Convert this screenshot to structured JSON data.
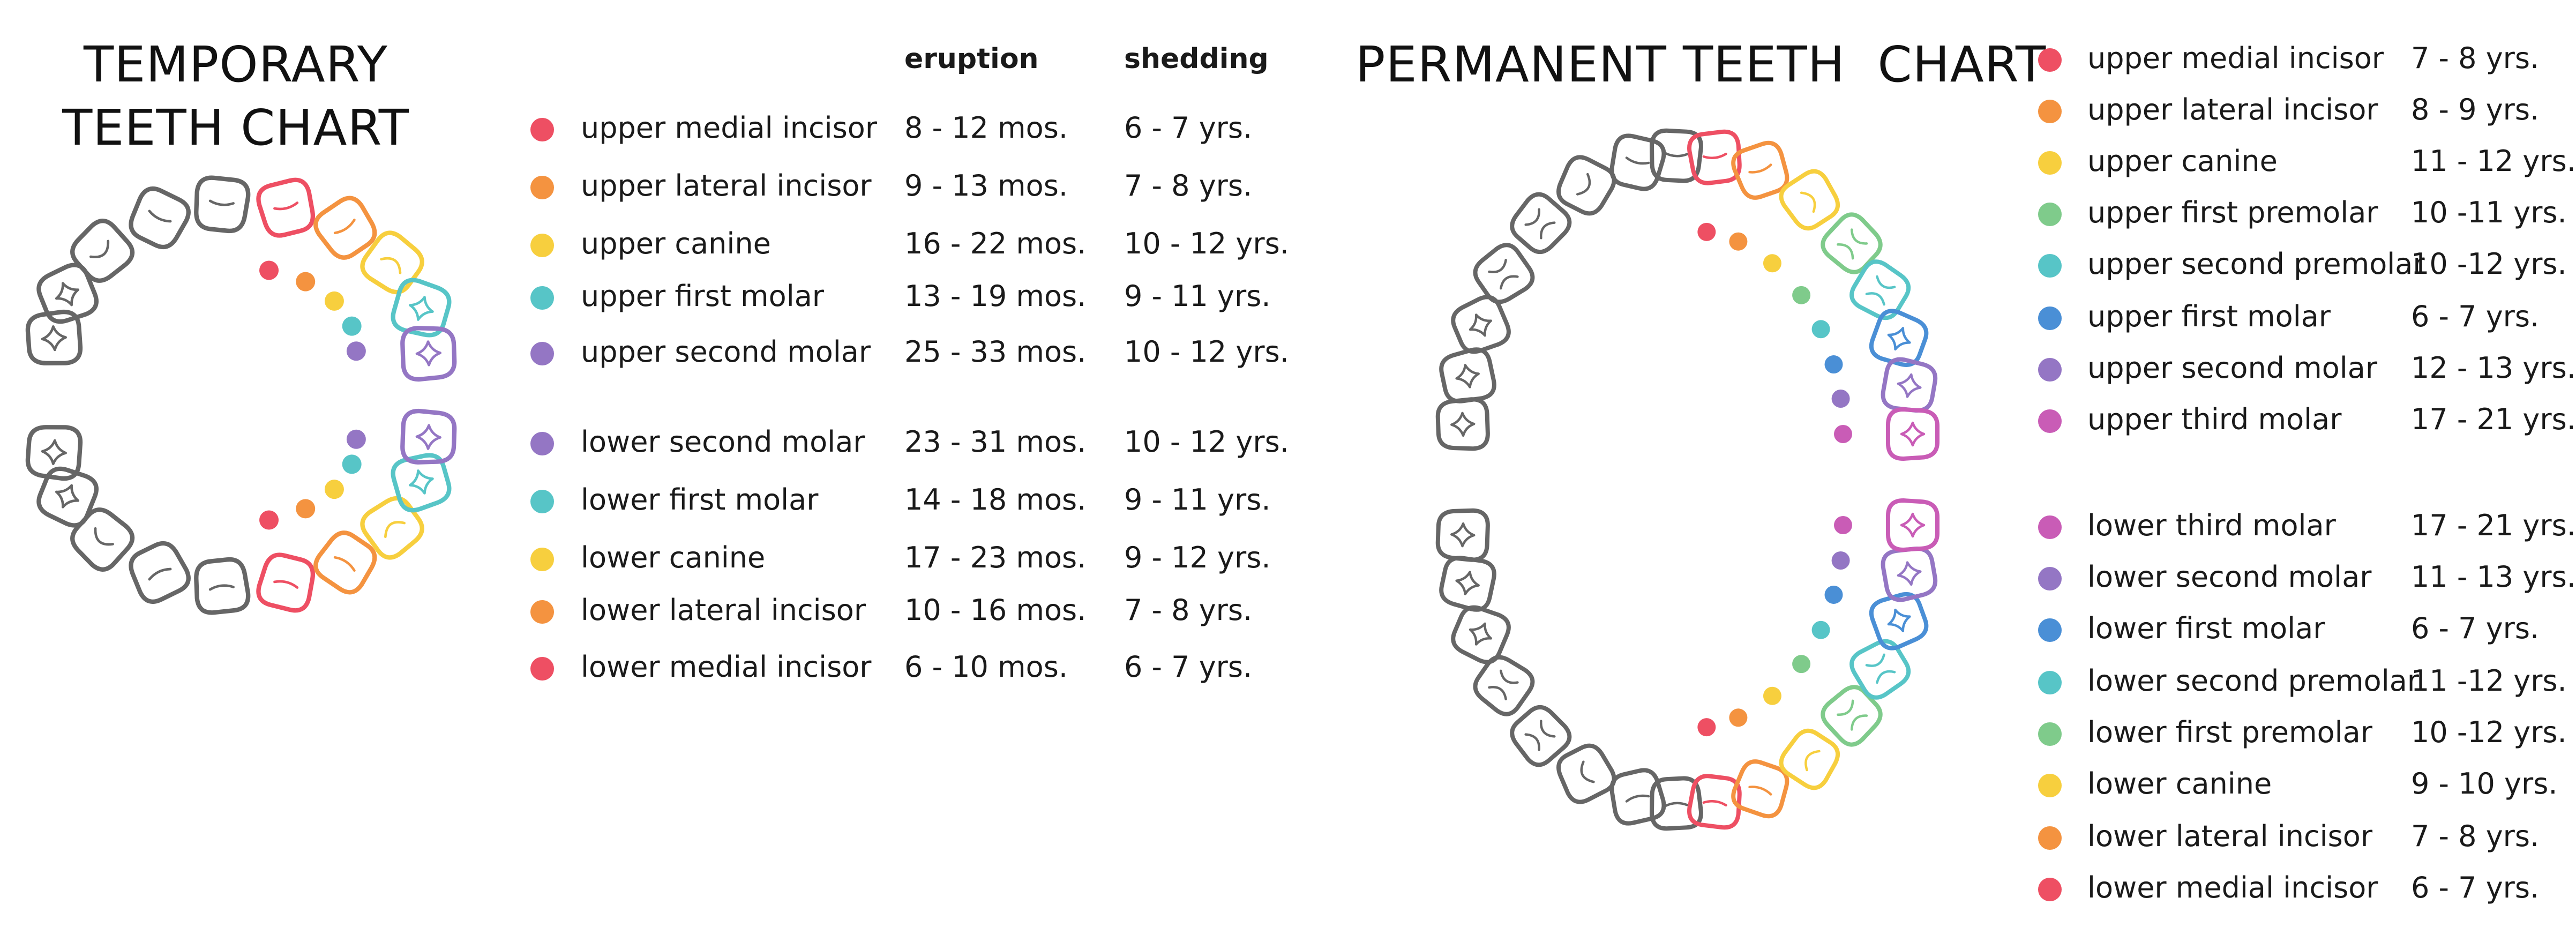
{
  "temporary": {
    "title": "TEMPORARY TEETH CHART",
    "eruption_header": "eruption",
    "shedding_header": "shedding",
    "rows": [
      {
        "color": "#ee4f63",
        "name": "upper medial incisor",
        "eruption": "8 - 12 mos.",
        "shedding": "6 - 7 yrs."
      },
      {
        "color": "#f49340",
        "name": "upper lateral incisor",
        "eruption": "9 - 13 mos.",
        "shedding": "7 - 8 yrs."
      },
      {
        "color": "#f7cf3e",
        "name": "upper canine",
        "eruption": "16 - 22 mos.",
        "shedding": "10 - 12 yrs."
      },
      {
        "color": "#57c5c7",
        "name": "upper first molar",
        "eruption": "13 - 19 mos.",
        "shedding": "9 - 11 yrs."
      },
      {
        "color": "#9476c4",
        "name": "upper second molar",
        "eruption": "25 - 33 mos.",
        "shedding": "10 - 12 yrs."
      },
      {
        "color": "#9476c4",
        "name": "lower second molar",
        "eruption": "23 - 31 mos.",
        "shedding": "10 - 12 yrs."
      },
      {
        "color": "#57c5c7",
        "name": "lower first molar",
        "eruption": "14 - 18 mos.",
        "shedding": "9 - 11 yrs."
      },
      {
        "color": "#f7cf3e",
        "name": "lower canine",
        "eruption": "17 - 23 mos.",
        "shedding": "9 - 12 yrs."
      },
      {
        "color": "#f49340",
        "name": "lower lateral incisor",
        "eruption": "10 - 16 mos.",
        "shedding": "7 - 8 yrs."
      },
      {
        "color": "#ee4f63",
        "name": "lower medial incisor",
        "eruption": "6 - 10 mos.",
        "shedding": "6 - 7 yrs."
      }
    ]
  },
  "permanent": {
    "title": "PERMANENT TEETH  CHART",
    "rows": [
      {
        "color": "#ee4f63",
        "name": "upper medial incisor",
        "age": "7 - 8 yrs."
      },
      {
        "color": "#f49340",
        "name": "upper lateral incisor",
        "age": "8 - 9 yrs."
      },
      {
        "color": "#f7cf3e",
        "name": "upper canine",
        "age": "11 - 12 yrs."
      },
      {
        "color": "#7fcb8b",
        "name": "upper first premolar",
        "age": "10 -11 yrs."
      },
      {
        "color": "#57c5c7",
        "name": "upper second premolar",
        "age": "10 -12 yrs."
      },
      {
        "color": "#4a8fd6",
        "name": "upper first molar",
        "age": "6 - 7 yrs."
      },
      {
        "color": "#9476c4",
        "name": "upper second molar",
        "age": "12 - 13 yrs."
      },
      {
        "color": "#c95cb6",
        "name": "upper third molar",
        "age": "17 - 21 yrs."
      },
      {
        "color": "#c95cb6",
        "name": "lower third molar",
        "age": "17 - 21 yrs."
      },
      {
        "color": "#9476c4",
        "name": "lower second molar",
        "age": "11 - 13 yrs."
      },
      {
        "color": "#4a8fd6",
        "name": "lower first molar",
        "age": "6 - 7 yrs."
      },
      {
        "color": "#57c5c7",
        "name": "lower second premolar",
        "age": "11 -12 yrs."
      },
      {
        "color": "#7fcb8b",
        "name": "lower first premolar",
        "age": "10 -12 yrs."
      },
      {
        "color": "#f7cf3e",
        "name": "lower canine",
        "age": "9 - 10 yrs."
      },
      {
        "color": "#f49340",
        "name": "lower lateral incisor",
        "age": "7 - 8 yrs."
      },
      {
        "color": "#ee4f63",
        "name": "lower medial incisor",
        "age": "6 - 7 yrs."
      }
    ]
  },
  "colors": {
    "tooth_outline": "#666666"
  }
}
